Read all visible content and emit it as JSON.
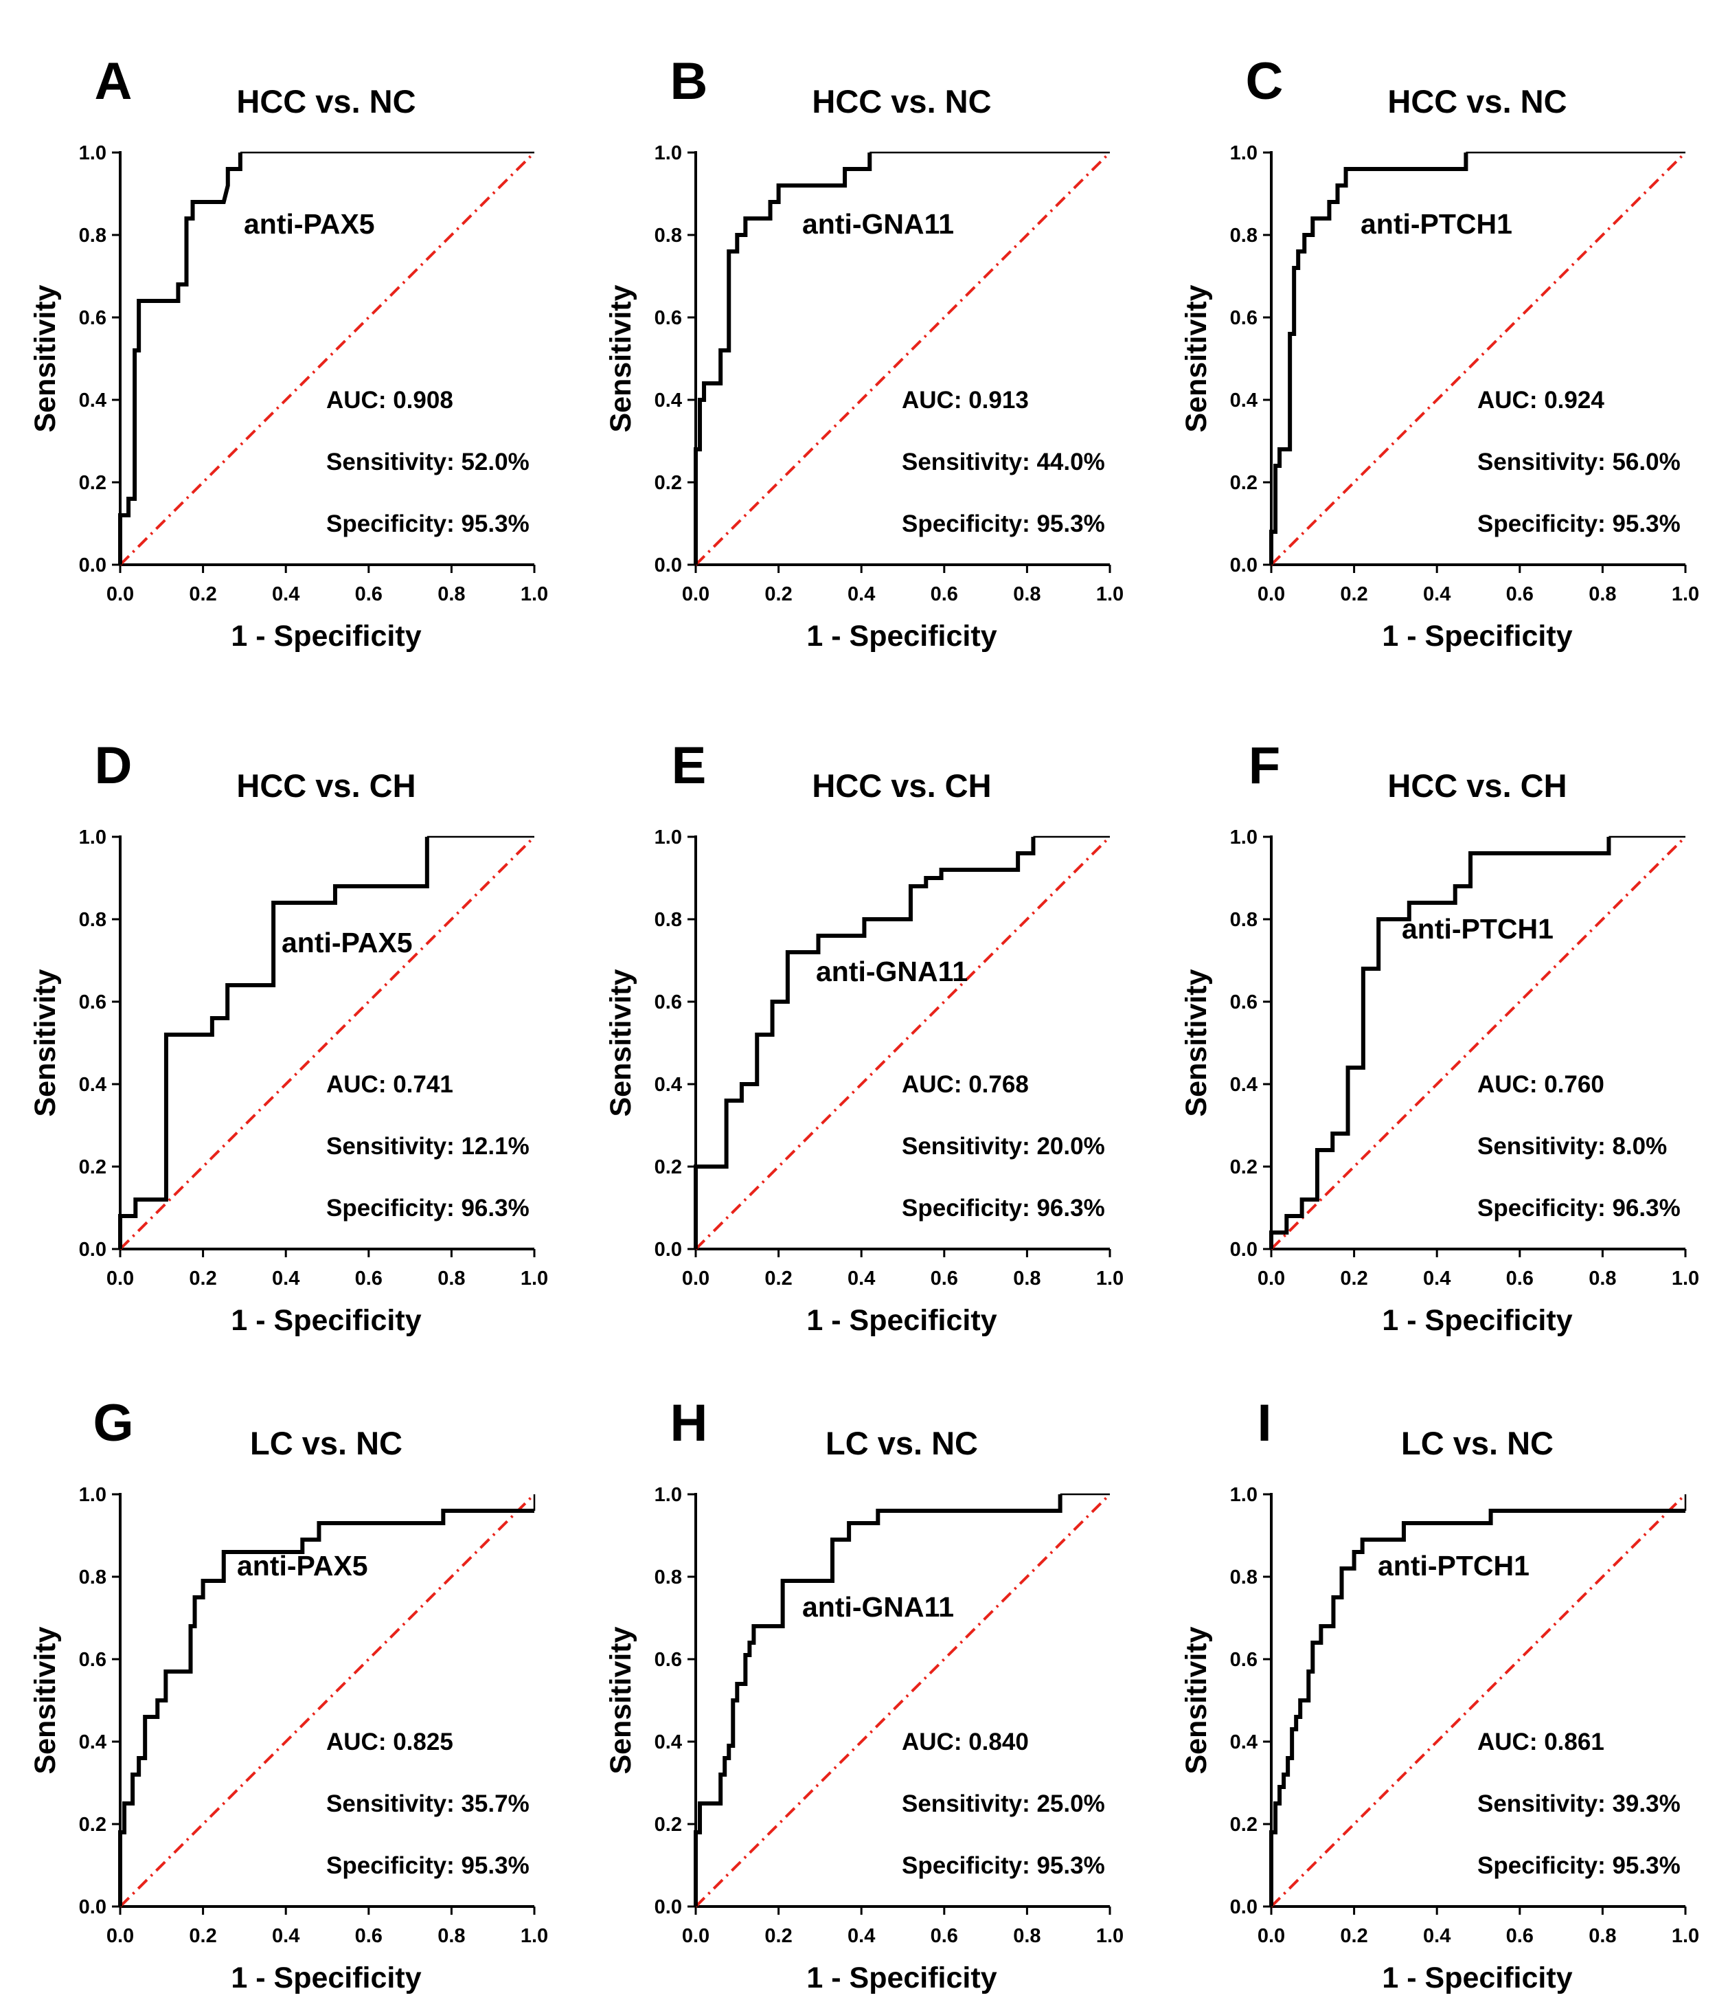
{
  "colors": {
    "curve": "#000000",
    "reference": "#e8231a",
    "background": "#ffffff"
  },
  "chart_data": [
    {
      "type": "line",
      "panel": "A",
      "title": "HCC vs. NC",
      "marker": "anti-PAX5",
      "xlabel": "1 - Specificity",
      "ylabel": "Sensitivity",
      "xlim": [
        0,
        1
      ],
      "ylim": [
        0,
        1
      ],
      "xticks": [
        "0.0",
        "0.2",
        "0.4",
        "0.6",
        "0.8",
        "1.0"
      ],
      "yticks": [
        "0.0",
        "0.2",
        "0.4",
        "0.6",
        "0.8",
        "1.0"
      ],
      "auc": "AUC: 0.908",
      "sensitivity": "Sensitivity: 52.0%",
      "specificity": "Specificity: 95.3%",
      "x": [
        0,
        0,
        0.02,
        0.02,
        0.035,
        0.035,
        0.045,
        0.045,
        0.06,
        0.06,
        0.14,
        0.14,
        0.16,
        0.16,
        0.175,
        0.175,
        0.25,
        0.26,
        0.26,
        0.29,
        0.29,
        1.0
      ],
      "y": [
        0,
        0.12,
        0.12,
        0.16,
        0.16,
        0.52,
        0.52,
        0.64,
        0.64,
        0.64,
        0.64,
        0.68,
        0.68,
        0.84,
        0.84,
        0.88,
        0.88,
        0.92,
        0.96,
        0.96,
        1.0,
        1.0
      ],
      "thin_from": 20
    },
    {
      "type": "line",
      "panel": "B",
      "title": "HCC vs. NC",
      "marker": "anti-GNA11",
      "xlabel": "1 - Specificity",
      "ylabel": "Sensitivity",
      "xlim": [
        0,
        1
      ],
      "ylim": [
        0,
        1
      ],
      "xticks": [
        "0.0",
        "0.2",
        "0.4",
        "0.6",
        "0.8",
        "1.0"
      ],
      "yticks": [
        "0.0",
        "0.2",
        "0.4",
        "0.6",
        "0.8",
        "1.0"
      ],
      "auc": "AUC: 0.913",
      "sensitivity": "Sensitivity: 44.0%",
      "specificity": "Specificity: 95.3%",
      "x": [
        0,
        0,
        0.01,
        0.01,
        0.02,
        0.02,
        0.06,
        0.06,
        0.08,
        0.08,
        0.1,
        0.1,
        0.12,
        0.12,
        0.14,
        0.14,
        0.18,
        0.18,
        0.2,
        0.2,
        0.36,
        0.36,
        0.42,
        0.42,
        1.0
      ],
      "y": [
        0,
        0.28,
        0.28,
        0.4,
        0.4,
        0.44,
        0.44,
        0.52,
        0.52,
        0.76,
        0.76,
        0.8,
        0.8,
        0.84,
        0.84,
        0.84,
        0.84,
        0.88,
        0.88,
        0.92,
        0.92,
        0.96,
        0.96,
        1.0,
        1.0
      ],
      "thin_from": 23
    },
    {
      "type": "line",
      "panel": "C",
      "title": "HCC vs. NC",
      "marker": "anti-PTCH1",
      "xlabel": "1 - Specificity",
      "ylabel": "Sensitivity",
      "xlim": [
        0,
        1
      ],
      "ylim": [
        0,
        1
      ],
      "xticks": [
        "0.0",
        "0.2",
        "0.4",
        "0.6",
        "0.8",
        "1.0"
      ],
      "yticks": [
        "0.0",
        "0.2",
        "0.4",
        "0.6",
        "0.8",
        "1.0"
      ],
      "auc": "AUC: 0.924",
      "sensitivity": "Sensitivity: 56.0%",
      "specificity": "Specificity: 95.3%",
      "x": [
        0,
        0,
        0.01,
        0.01,
        0.02,
        0.02,
        0.045,
        0.045,
        0.055,
        0.055,
        0.065,
        0.065,
        0.08,
        0.08,
        0.1,
        0.1,
        0.14,
        0.14,
        0.16,
        0.16,
        0.18,
        0.18,
        0.47,
        0.47,
        1.0
      ],
      "y": [
        0,
        0.08,
        0.08,
        0.24,
        0.24,
        0.28,
        0.28,
        0.56,
        0.56,
        0.72,
        0.72,
        0.76,
        0.76,
        0.8,
        0.8,
        0.84,
        0.84,
        0.88,
        0.88,
        0.92,
        0.92,
        0.96,
        0.96,
        1.0,
        1.0
      ],
      "thin_from": 23
    },
    {
      "type": "line",
      "panel": "D",
      "title": "HCC vs. CH",
      "marker": "anti-PAX5",
      "xlabel": "1 - Specificity",
      "ylabel": "Sensitivity",
      "xlim": [
        0,
        1
      ],
      "ylim": [
        0,
        1
      ],
      "xticks": [
        "0.0",
        "0.2",
        "0.4",
        "0.6",
        "0.8",
        "1.0"
      ],
      "yticks": [
        "0.0",
        "0.2",
        "0.4",
        "0.6",
        "0.8",
        "1.0"
      ],
      "auc": "AUC: 0.741",
      "sensitivity": "Sensitivity: 12.1%",
      "specificity": "Specificity: 96.3%",
      "x": [
        0,
        0,
        0.037,
        0.037,
        0.111,
        0.111,
        0.222,
        0.222,
        0.259,
        0.259,
        0.37,
        0.37,
        0.519,
        0.519,
        0.741,
        0.741,
        1.0
      ],
      "y": [
        0,
        0.08,
        0.08,
        0.12,
        0.12,
        0.52,
        0.52,
        0.56,
        0.56,
        0.64,
        0.64,
        0.84,
        0.84,
        0.88,
        0.88,
        1.0,
        1.0
      ],
      "thin_from": 15
    },
    {
      "type": "line",
      "panel": "E",
      "title": "HCC vs. CH",
      "marker": "anti-GNA11",
      "xlabel": "1 - Specificity",
      "ylabel": "Sensitivity",
      "xlim": [
        0,
        1
      ],
      "ylim": [
        0,
        1
      ],
      "xticks": [
        "0.0",
        "0.2",
        "0.4",
        "0.6",
        "0.8",
        "1.0"
      ],
      "yticks": [
        "0.0",
        "0.2",
        "0.4",
        "0.6",
        "0.8",
        "1.0"
      ],
      "auc": "AUC: 0.768",
      "sensitivity": "Sensitivity: 20.0%",
      "specificity": "Specificity: 96.3%",
      "x": [
        0,
        0,
        0.074,
        0.074,
        0.111,
        0.111,
        0.148,
        0.148,
        0.185,
        0.185,
        0.222,
        0.222,
        0.296,
        0.296,
        0.407,
        0.407,
        0.519,
        0.519,
        0.556,
        0.556,
        0.593,
        0.593,
        0.778,
        0.778,
        0.815,
        0.815,
        1.0
      ],
      "y": [
        0,
        0.2,
        0.2,
        0.36,
        0.36,
        0.4,
        0.4,
        0.52,
        0.52,
        0.6,
        0.6,
        0.72,
        0.72,
        0.76,
        0.76,
        0.8,
        0.8,
        0.88,
        0.88,
        0.9,
        0.9,
        0.92,
        0.92,
        0.96,
        0.96,
        1.0,
        1.0
      ],
      "thin_from": 25
    },
    {
      "type": "line",
      "panel": "F",
      "title": "HCC vs. CH",
      "marker": "anti-PTCH1",
      "xlabel": "1 - Specificity",
      "ylabel": "Sensitivity",
      "xlim": [
        0,
        1
      ],
      "ylim": [
        0,
        1
      ],
      "xticks": [
        "0.0",
        "0.2",
        "0.4",
        "0.6",
        "0.8",
        "1.0"
      ],
      "yticks": [
        "0.0",
        "0.2",
        "0.4",
        "0.6",
        "0.8",
        "1.0"
      ],
      "auc": "AUC: 0.760",
      "sensitivity": "Sensitivity: 8.0%",
      "specificity": "Specificity: 96.3%",
      "x": [
        0,
        0,
        0.037,
        0.037,
        0.074,
        0.074,
        0.111,
        0.111,
        0.148,
        0.148,
        0.185,
        0.185,
        0.222,
        0.222,
        0.259,
        0.259,
        0.333,
        0.333,
        0.444,
        0.444,
        0.481,
        0.481,
        0.815,
        0.815,
        1.0
      ],
      "y": [
        0,
        0.04,
        0.04,
        0.08,
        0.08,
        0.12,
        0.12,
        0.24,
        0.24,
        0.28,
        0.28,
        0.44,
        0.44,
        0.68,
        0.68,
        0.8,
        0.8,
        0.84,
        0.84,
        0.88,
        0.88,
        0.96,
        0.96,
        1.0,
        1.0
      ],
      "thin_from": 23
    },
    {
      "type": "line",
      "panel": "G",
      "title": "LC vs. NC",
      "marker": "anti-PAX5",
      "xlabel": "1 - Specificity",
      "ylabel": "Sensitivity",
      "xlim": [
        0,
        1
      ],
      "ylim": [
        0,
        1
      ],
      "xticks": [
        "0.0",
        "0.2",
        "0.4",
        "0.6",
        "0.8",
        "1.0"
      ],
      "yticks": [
        "0.0",
        "0.2",
        "0.4",
        "0.6",
        "0.8",
        "1.0"
      ],
      "auc": "AUC: 0.825",
      "sensitivity": "Sensitivity: 35.7%",
      "specificity": "Specificity: 95.3%",
      "x": [
        0,
        0,
        0.01,
        0.01,
        0.03,
        0.03,
        0.045,
        0.045,
        0.06,
        0.06,
        0.09,
        0.09,
        0.11,
        0.11,
        0.17,
        0.17,
        0.18,
        0.18,
        0.2,
        0.2,
        0.25,
        0.25,
        0.44,
        0.44,
        0.48,
        0.48,
        0.78,
        0.78,
        0.98,
        0.98,
        1.0,
        1.0
      ],
      "y": [
        0,
        0.18,
        0.18,
        0.25,
        0.25,
        0.32,
        0.32,
        0.36,
        0.36,
        0.46,
        0.46,
        0.5,
        0.5,
        0.57,
        0.57,
        0.68,
        0.68,
        0.75,
        0.75,
        0.79,
        0.79,
        0.86,
        0.86,
        0.89,
        0.89,
        0.93,
        0.93,
        0.96,
        0.96,
        0.96,
        0.96,
        1.0
      ],
      "thin_from": 30
    },
    {
      "type": "line",
      "panel": "H",
      "title": "LC vs. NC",
      "marker": "anti-GNA11",
      "xlabel": "1 - Specificity",
      "ylabel": "Sensitivity",
      "xlim": [
        0,
        1
      ],
      "ylim": [
        0,
        1
      ],
      "xticks": [
        "0.0",
        "0.2",
        "0.4",
        "0.6",
        "0.8",
        "1.0"
      ],
      "yticks": [
        "0.0",
        "0.2",
        "0.4",
        "0.6",
        "0.8",
        "1.0"
      ],
      "auc": "AUC: 0.840",
      "sensitivity": "Sensitivity: 25.0%",
      "specificity": "Specificity: 95.3%",
      "x": [
        0,
        0,
        0.01,
        0.01,
        0.06,
        0.06,
        0.07,
        0.07,
        0.08,
        0.08,
        0.09,
        0.09,
        0.1,
        0.1,
        0.12,
        0.12,
        0.13,
        0.13,
        0.14,
        0.14,
        0.21,
        0.21,
        0.33,
        0.33,
        0.37,
        0.37,
        0.44,
        0.44,
        0.88,
        0.88,
        1.0
      ],
      "y": [
        0,
        0.18,
        0.18,
        0.25,
        0.25,
        0.32,
        0.32,
        0.36,
        0.36,
        0.39,
        0.39,
        0.5,
        0.5,
        0.54,
        0.54,
        0.61,
        0.61,
        0.64,
        0.64,
        0.68,
        0.68,
        0.79,
        0.79,
        0.89,
        0.89,
        0.93,
        0.93,
        0.96,
        0.96,
        1.0,
        1.0
      ],
      "thin_from": 29
    },
    {
      "type": "line",
      "panel": "I",
      "title": "LC vs. NC",
      "marker": "anti-PTCH1",
      "xlabel": "1 - Specificity",
      "ylabel": "Sensitivity",
      "xlim": [
        0,
        1
      ],
      "ylim": [
        0,
        1
      ],
      "xticks": [
        "0.0",
        "0.2",
        "0.4",
        "0.6",
        "0.8",
        "1.0"
      ],
      "yticks": [
        "0.0",
        "0.2",
        "0.4",
        "0.6",
        "0.8",
        "1.0"
      ],
      "auc": "AUC: 0.861",
      "sensitivity": "Sensitivity: 39.3%",
      "specificity": "Specificity: 95.3%",
      "x": [
        0,
        0,
        0.01,
        0.01,
        0.02,
        0.02,
        0.03,
        0.03,
        0.04,
        0.04,
        0.05,
        0.05,
        0.06,
        0.06,
        0.07,
        0.07,
        0.09,
        0.09,
        0.1,
        0.1,
        0.12,
        0.12,
        0.15,
        0.15,
        0.17,
        0.17,
        0.2,
        0.2,
        0.22,
        0.22,
        0.32,
        0.32,
        0.53,
        0.53,
        1.0,
        1.0
      ],
      "y": [
        0,
        0.18,
        0.18,
        0.25,
        0.25,
        0.29,
        0.29,
        0.32,
        0.32,
        0.36,
        0.36,
        0.43,
        0.43,
        0.46,
        0.46,
        0.5,
        0.5,
        0.57,
        0.57,
        0.64,
        0.64,
        0.68,
        0.68,
        0.75,
        0.75,
        0.82,
        0.82,
        0.86,
        0.86,
        0.89,
        0.89,
        0.93,
        0.93,
        0.96,
        0.96,
        1.0
      ],
      "thin_from": 34
    }
  ]
}
